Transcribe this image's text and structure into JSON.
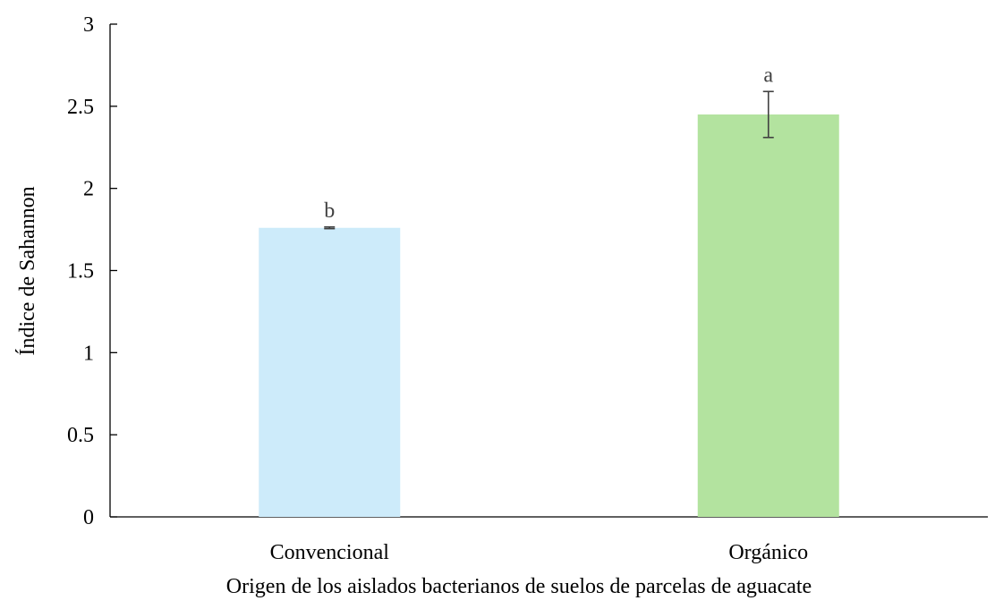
{
  "chart_data": {
    "type": "bar",
    "categories": [
      "Convencional",
      "Orgánico"
    ],
    "values": [
      1.76,
      2.45
    ],
    "error": [
      0.005,
      0.14
    ],
    "significance_letters": [
      "b",
      "a"
    ],
    "colors": [
      "#cdebfa",
      "#b3e39f"
    ],
    "title": "",
    "xlabel": "Origen de los aislados bacterianos de suelos de parcelas de aguacate",
    "ylabel": "Índice de Sahannon",
    "ylim": [
      0,
      3
    ],
    "yticks": [
      "0",
      "0.5",
      "1",
      "1.5",
      "2",
      "2.5",
      "3"
    ],
    "grid": false,
    "legend": "none"
  }
}
